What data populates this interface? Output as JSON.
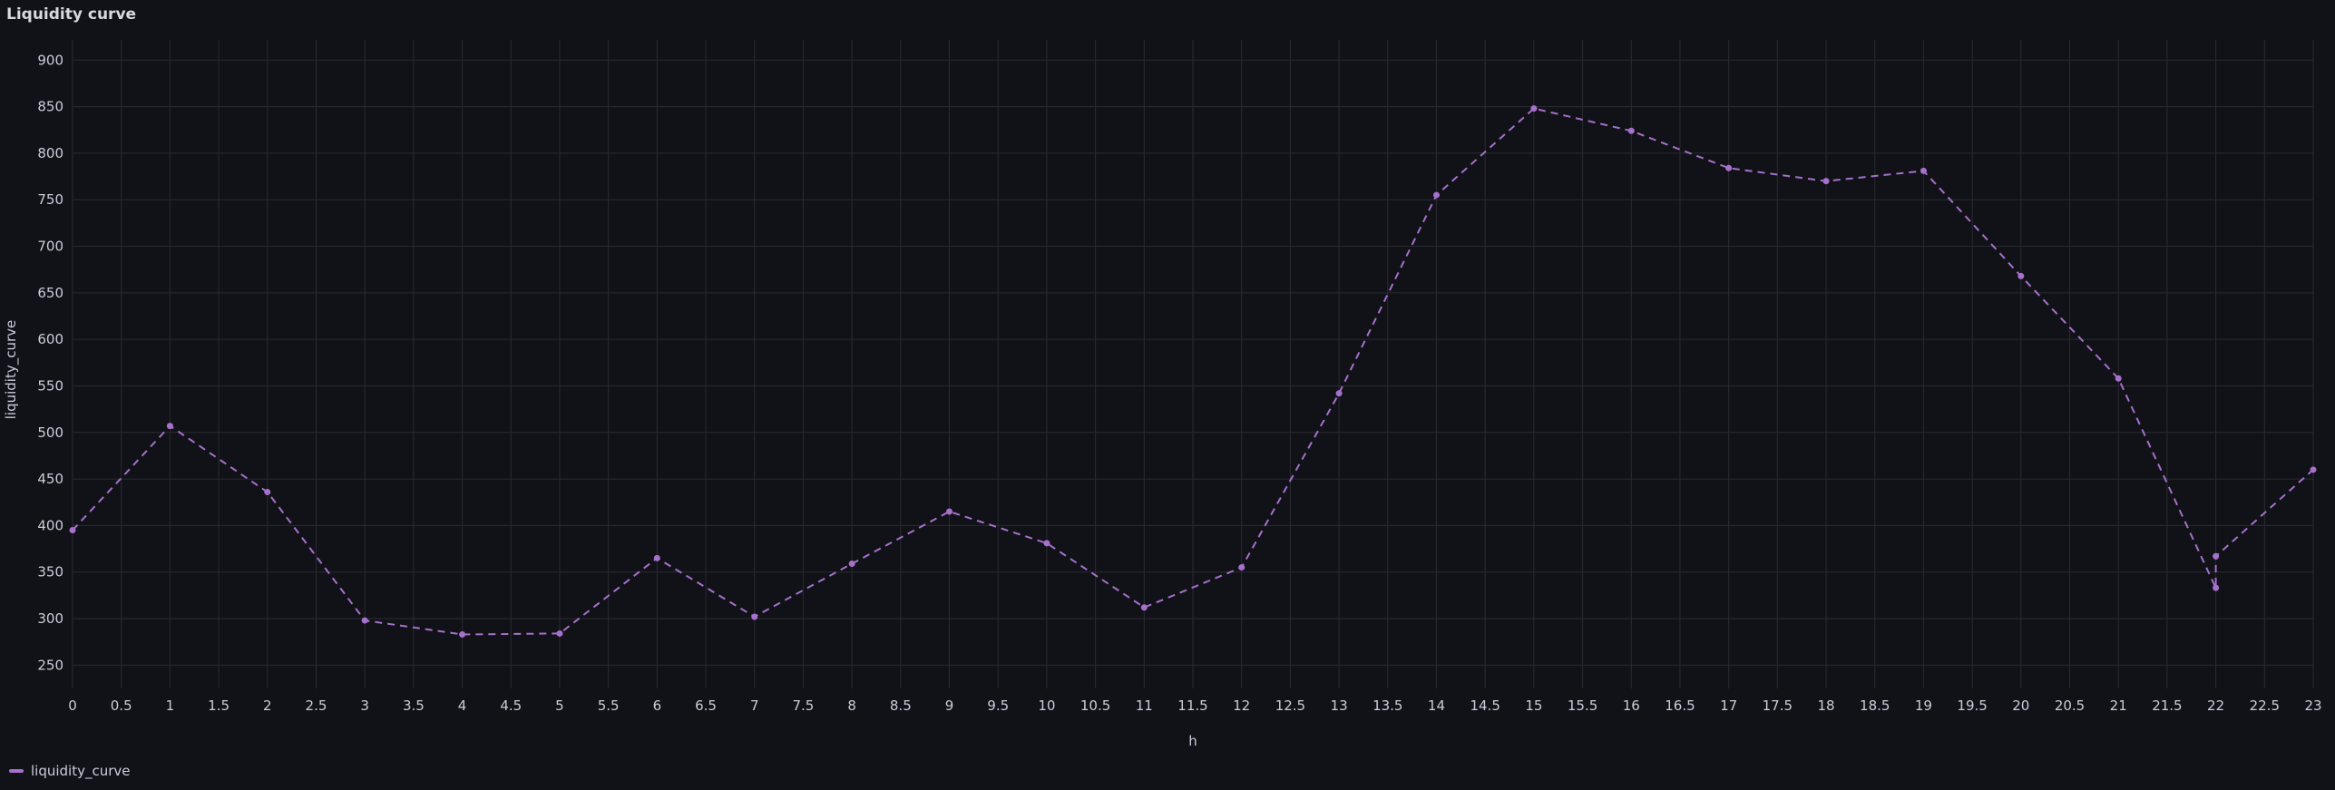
{
  "panel": {
    "title": "Liquidity curve"
  },
  "colors": {
    "background": "#111217",
    "grid": "#2a2b31",
    "text": "#ccccdc",
    "series": "#a670cc"
  },
  "chart_data": {
    "type": "line",
    "title": "Liquidity curve",
    "xlabel": "h",
    "ylabel": "liquidity_curve",
    "xlim": [
      0,
      23
    ],
    "ylim": [
      225,
      910
    ],
    "x_ticks": [
      "0",
      "0.5",
      "1",
      "1.5",
      "2",
      "2.5",
      "3",
      "3.5",
      "4",
      "4.5",
      "5",
      "5.5",
      "6",
      "6.5",
      "7",
      "7.5",
      "8",
      "8.5",
      "9",
      "9.5",
      "10",
      "10.5",
      "11",
      "11.5",
      "12",
      "12.5",
      "13",
      "13.5",
      "14",
      "14.5",
      "15",
      "15.5",
      "16",
      "16.5",
      "17",
      "17.5",
      "18",
      "18.5",
      "19",
      "19.5",
      "20",
      "20.5",
      "21",
      "21.5",
      "22",
      "22.5",
      "23"
    ],
    "y_ticks": [
      "250",
      "300",
      "350",
      "400",
      "450",
      "500",
      "550",
      "600",
      "650",
      "700",
      "750",
      "800",
      "850",
      "900"
    ],
    "line_style": "dashed",
    "points_visible": true,
    "grid": true,
    "legend_position": "bottom-left",
    "series": [
      {
        "name": "liquidity_curve",
        "color": "#a670cc",
        "x": [
          0,
          1,
          2,
          3,
          4,
          5,
          6,
          7,
          8,
          9,
          10,
          11,
          12,
          13,
          14,
          15,
          16,
          17,
          18,
          19,
          20,
          21,
          22,
          22,
          23
        ],
        "y": [
          395,
          507,
          436,
          298,
          283,
          284,
          365,
          302,
          359,
          415,
          381,
          312,
          355,
          542,
          755,
          848,
          824,
          784,
          770,
          781,
          668,
          558,
          333,
          367,
          460
        ]
      }
    ]
  },
  "legend": {
    "items": [
      {
        "label": "liquidity_curve"
      }
    ]
  }
}
